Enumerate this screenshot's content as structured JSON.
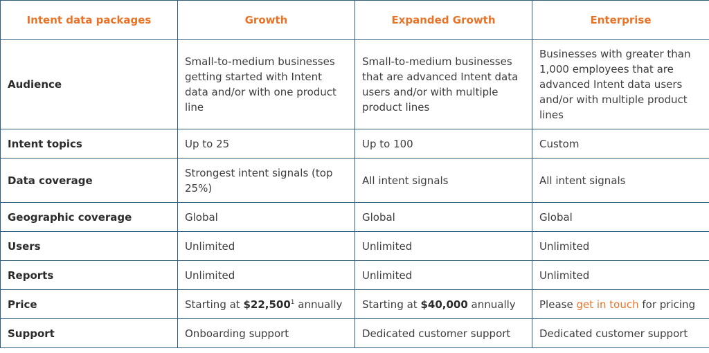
{
  "header": {
    "col0": "Intent data packages",
    "col1": "Growth",
    "col2": "Expanded Growth",
    "col3": "Enterprise"
  },
  "rows": {
    "audience": {
      "label": "Audience",
      "growth": "Small-to-medium businesses getting started with Intent data and/or with one product line",
      "expanded": "Small-to-medium businesses that are advanced Intent data users and/or with multiple product lines",
      "enterprise": "Businesses with greater than 1,000 employees that are advanced Intent data users and/or with multiple product lines"
    },
    "topics": {
      "label": "Intent topics",
      "growth": "Up to 25",
      "expanded": "Up to 100",
      "enterprise": "Custom"
    },
    "coverage": {
      "label": "Data coverage",
      "growth": "Strongest intent signals (top 25%)",
      "expanded": "All intent signals",
      "enterprise": "All intent signals"
    },
    "geo": {
      "label": "Geographic coverage",
      "growth": "Global",
      "expanded": "Global",
      "enterprise": "Global"
    },
    "users": {
      "label": "Users",
      "growth": "Unlimited",
      "expanded": "Unlimited",
      "enterprise": "Unlimited"
    },
    "reports": {
      "label": "Reports",
      "growth": "Unlimited",
      "expanded": "Unlimited",
      "enterprise": "Unlimited"
    },
    "price": {
      "label": "Price",
      "growth_prefix": "Starting at ",
      "growth_amount": "$22,500",
      "growth_footnote": "1",
      "growth_suffix": " annually",
      "expanded_prefix": "Starting at ",
      "expanded_amount": "$40,000",
      "expanded_suffix": " annually",
      "enterprise_prefix": "Please ",
      "enterprise_link": "get in touch",
      "enterprise_suffix": " for pricing"
    },
    "support": {
      "label": "Support",
      "growth": "Onboarding support",
      "expanded": "Dedicated customer support",
      "enterprise": "Dedicated customer support"
    }
  },
  "colors": {
    "accent": "#e8742a",
    "border": "#2d5d7b",
    "text": "#3d3d3d"
  }
}
